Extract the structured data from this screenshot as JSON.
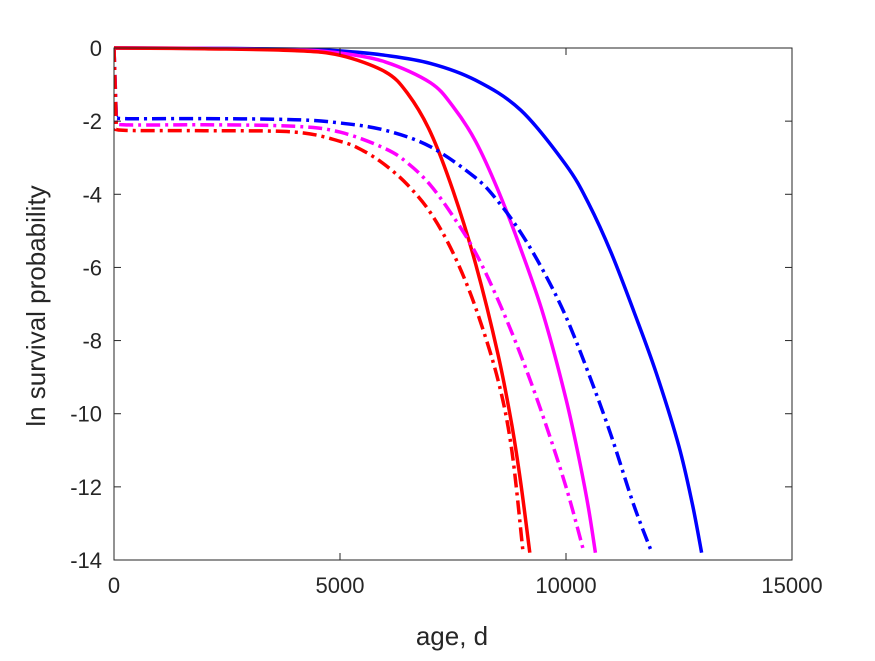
{
  "chart_data": {
    "type": "line",
    "xlabel": "age, d",
    "ylabel": "ln survival probability",
    "xlim": [
      0,
      15000
    ],
    "ylim": [
      -14,
      0
    ],
    "xticks": [
      0,
      5000,
      10000,
      15000
    ],
    "yticks": [
      -14,
      -12,
      -10,
      -8,
      -6,
      -4,
      -2,
      0
    ],
    "grid": false,
    "legend": "none",
    "series": [
      {
        "color": "#0000ff",
        "style": "solid",
        "x": [
          0,
          2000,
          4000,
          5000,
          6000,
          7000,
          8000,
          9000,
          10000,
          10500,
          11000,
          11500,
          12000,
          12500,
          12800,
          13000
        ],
        "y": [
          0,
          -0.01,
          -0.03,
          -0.08,
          -0.2,
          -0.42,
          -0.88,
          -1.7,
          -3.2,
          -4.25,
          -5.6,
          -7.2,
          -8.9,
          -10.9,
          -12.5,
          -13.8
        ]
      },
      {
        "color": "#ff00ff",
        "style": "solid",
        "x": [
          0,
          2000,
          4000,
          5000,
          6000,
          7000,
          7500,
          8000,
          8500,
          9000,
          9500,
          10000,
          10300,
          10500,
          10650
        ],
        "y": [
          0,
          -0.01,
          -0.05,
          -0.14,
          -0.38,
          -0.95,
          -1.6,
          -2.55,
          -3.9,
          -5.5,
          -7.3,
          -9.6,
          -11.3,
          -12.6,
          -13.8
        ]
      },
      {
        "color": "#ff0000",
        "style": "solid",
        "x": [
          0,
          2000,
          4000,
          5000,
          6000,
          6500,
          7000,
          7500,
          8000,
          8500,
          8800,
          9000,
          9200
        ],
        "y": [
          0,
          -0.02,
          -0.07,
          -0.2,
          -0.65,
          -1.25,
          -2.3,
          -3.9,
          -5.9,
          -8.4,
          -10.3,
          -11.9,
          -13.8
        ]
      },
      {
        "color": "#0000ff",
        "style": "dashdot",
        "x": [
          0,
          50,
          200,
          2000,
          4000,
          5000,
          6000,
          7000,
          8000,
          8500,
          9000,
          9500,
          10000,
          10500,
          11000,
          11500,
          11900
        ],
        "y": [
          0,
          -1.85,
          -1.93,
          -1.93,
          -1.96,
          -2.05,
          -2.25,
          -2.7,
          -3.55,
          -4.2,
          -5.05,
          -6.1,
          -7.35,
          -8.9,
          -10.6,
          -12.5,
          -13.8
        ]
      },
      {
        "color": "#ff00ff",
        "style": "dashdot",
        "x": [
          0,
          50,
          200,
          2000,
          4000,
          5000,
          6000,
          6500,
          7000,
          7500,
          8000,
          8500,
          9000,
          9500,
          10000,
          10400
        ],
        "y": [
          0,
          -2.0,
          -2.1,
          -2.1,
          -2.14,
          -2.3,
          -2.75,
          -3.15,
          -3.75,
          -4.6,
          -5.6,
          -6.9,
          -8.4,
          -10.1,
          -12.0,
          -13.8
        ]
      },
      {
        "color": "#ff0000",
        "style": "dashdot",
        "x": [
          0,
          50,
          200,
          2000,
          4000,
          5000,
          5500,
          6000,
          6500,
          7000,
          7500,
          8000,
          8500,
          8800,
          9050
        ],
        "y": [
          0,
          -2.15,
          -2.25,
          -2.26,
          -2.3,
          -2.55,
          -2.8,
          -3.2,
          -3.75,
          -4.5,
          -5.6,
          -7.1,
          -9.1,
          -11.0,
          -13.8
        ]
      }
    ]
  }
}
